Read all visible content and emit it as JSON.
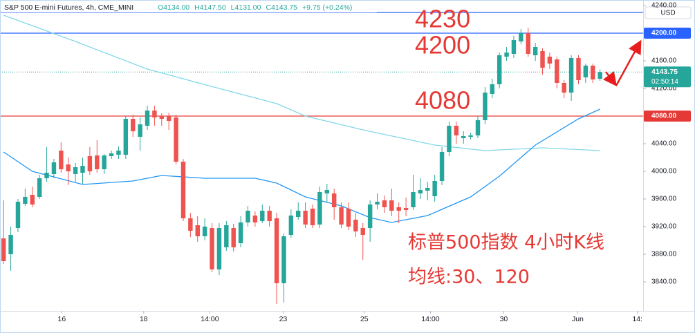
{
  "chart_data": {
    "type": "candlestick",
    "symbol": "S&P 500 E-mini Futures, 4h, CME_MINI",
    "ohlc_text": [
      "O4134.00",
      "H4147.50",
      "L4131.00",
      "C4143.75",
      "+9.75 (+0.24%)"
    ],
    "currency": "USD",
    "up_color": "#26a69a",
    "down_color": "#ef5350",
    "open": [
      3903,
      3880,
      3918,
      3953,
      3966,
      3963,
      3990,
      3996,
      4030,
      4010,
      3996,
      3998,
      4022,
      4023,
      4003,
      4022,
      4024,
      4024,
      4076,
      4050,
      4066,
      4088,
      4080,
      4080,
      4078,
      4014,
      3932,
      3922,
      3906,
      3918,
      3858,
      3890,
      3918,
      3896,
      3926,
      3936,
      3928,
      3943,
      3932,
      3838,
      3908,
      3934,
      3943,
      3946,
      3923,
      3968,
      3968,
      3948,
      3946,
      3930,
      3918,
      3918,
      3952,
      3958,
      3958,
      3948,
      3947,
      3948,
      3968,
      3972,
      3964,
      3986,
      4028,
      4066,
      4048,
      4050,
      4052,
      4074,
      4112,
      4126,
      4166,
      4170,
      4188,
      4200,
      4168,
      4174,
      4166,
      4162,
      4128,
      4114,
      4164,
      4136,
      4153,
      4134
    ],
    "high": [
      3958,
      3920,
      3960,
      3975,
      3978,
      3995,
      4035,
      4018,
      4042,
      4020,
      4012,
      4020,
      4035,
      4045,
      4025,
      4030,
      4036,
      4080,
      4082,
      4078,
      4095,
      4095,
      4084,
      4085,
      4082,
      4018,
      3940,
      3935,
      3932,
      3925,
      3925,
      3928,
      3924,
      3935,
      3950,
      3942,
      3952,
      3950,
      3940,
      3910,
      3945,
      3955,
      3955,
      3952,
      3978,
      3982,
      3975,
      3955,
      3955,
      3940,
      3925,
      3958,
      3968,
      3965,
      3975,
      3955,
      3962,
      3995,
      3990,
      3985,
      3995,
      4035,
      4072,
      4072,
      4058,
      4056,
      4080,
      4122,
      4134,
      4172,
      4180,
      4196,
      4206,
      4208,
      4186,
      4178,
      4172,
      4166,
      4132,
      4168,
      4168,
      4156,
      4156,
      4147.5
    ],
    "low": [
      3866,
      3856,
      3912,
      3950,
      3948,
      3960,
      3985,
      3990,
      3998,
      3980,
      3985,
      3982,
      3995,
      3998,
      3996,
      4018,
      4018,
      4018,
      4050,
      4030,
      4060,
      4066,
      4066,
      4060,
      4010,
      3928,
      3905,
      3898,
      3900,
      3854,
      3850,
      3885,
      3884,
      3890,
      3920,
      3920,
      3925,
      3920,
      3808,
      3810,
      3904,
      3930,
      3918,
      3918,
      3918,
      3955,
      3930,
      3918,
      3915,
      3905,
      3872,
      3898,
      3945,
      3940,
      3935,
      3925,
      3935,
      3944,
      3960,
      3958,
      3956,
      3980,
      4022,
      4040,
      4040,
      4046,
      4048,
      4068,
      4106,
      4120,
      4160,
      4164,
      4184,
      4166,
      4160,
      4140,
      4148,
      4120,
      4106,
      4102,
      4126,
      4128,
      4128,
      4131
    ],
    "close": [
      3870,
      3908,
      3956,
      3963,
      3952,
      3990,
      3998,
      4013,
      4003,
      4000,
      4006,
      4008,
      4000,
      4003,
      4023,
      4026,
      4030,
      4076,
      4058,
      4068,
      4088,
      4078,
      4076,
      4073,
      4014,
      3932,
      3914,
      3906,
      3920,
      3858,
      3918,
      3922,
      3890,
      3926,
      3943,
      3926,
      3943,
      3928,
      3838,
      3906,
      3936,
      3943,
      3923,
      3922,
      3970,
      3973,
      3948,
      3923,
      3920,
      3913,
      3908,
      3952,
      3956,
      3948,
      3943,
      3943,
      3944,
      3970,
      3973,
      3976,
      3986,
      4028,
      4066,
      4052,
      4051,
      4052,
      4074,
      4114,
      4126,
      4168,
      4172,
      4190,
      4200,
      4170,
      4180,
      4150,
      4156,
      4128,
      4114,
      4164,
      4132,
      4153,
      4133,
      4143.75
    ],
    "series": [
      {
        "color": "#80d8e8",
        "x": [
          0,
          10,
          20,
          30,
          38,
          42,
          50,
          60,
          67,
          75,
          83
        ],
        "values": [
          4226,
          4188,
          4148,
          4120,
          4098,
          4080,
          4060,
          4038,
          4030,
          4034,
          4030
        ]
      },
      {
        "color": "#2196f3",
        "x": [
          0,
          4,
          11,
          18,
          22,
          28,
          35,
          38,
          42,
          47,
          51,
          54,
          59,
          65,
          69,
          74,
          80,
          83
        ],
        "values": [
          4028,
          4000,
          3981,
          3986,
          3994,
          3990,
          3990,
          3983,
          3963,
          3950,
          3933,
          3926,
          3936,
          3963,
          3993,
          4038,
          4076,
          4090
        ]
      }
    ],
    "hlines": [
      {
        "value": 4230,
        "color": "#2962ff"
      },
      {
        "value": 4200,
        "color": "#2962ff"
      },
      {
        "value": 4080,
        "color": "#e53935"
      }
    ],
    "price_labels": [
      {
        "value": 4200,
        "label": "4200.00",
        "color": "#2962ff"
      },
      {
        "value": 4080,
        "label": "4080.00",
        "color": "#e53935"
      }
    ],
    "last_price": {
      "value": 4143.75,
      "label": "4143.75",
      "countdown": "02:50:14",
      "color": "#26a69a"
    },
    "annotations": [
      "4230",
      "4200",
      "4080"
    ],
    "notes": [
      "标普500指数 4小时K线",
      "均线:30、120"
    ],
    "ylim": [
      3798,
      4248
    ],
    "yticks": [
      {
        "value": 3840,
        "label": "3840.00"
      },
      {
        "value": 3880,
        "label": "3880.00"
      },
      {
        "value": 3920,
        "label": "3920.00"
      },
      {
        "value": 3960,
        "label": "3960.00"
      },
      {
        "value": 4000,
        "label": "4000.00"
      },
      {
        "value": 4040,
        "label": "4040.00"
      },
      {
        "value": 4080,
        "label": "4080.00"
      },
      {
        "value": 4120,
        "label": "4120.00"
      },
      {
        "value": 4160,
        "label": "4160.00"
      },
      {
        "value": 4200,
        "label": "4200.00"
      },
      {
        "value": 4240,
        "label": "4240.00"
      }
    ],
    "xlim": [
      -0.5,
      89
    ],
    "xticks": [
      {
        "value": 8.1,
        "label": "16"
      },
      {
        "value": 19.5,
        "label": "18"
      },
      {
        "value": 28.7,
        "label": "14:00"
      },
      {
        "value": 38.9,
        "label": "23"
      },
      {
        "value": 50.2,
        "label": "25"
      },
      {
        "value": 59.4,
        "label": "14:00"
      },
      {
        "value": 69.6,
        "label": "30"
      },
      {
        "value": 79.9,
        "label": "Jun"
      },
      {
        "value": 88.2,
        "label": "14:"
      }
    ]
  }
}
